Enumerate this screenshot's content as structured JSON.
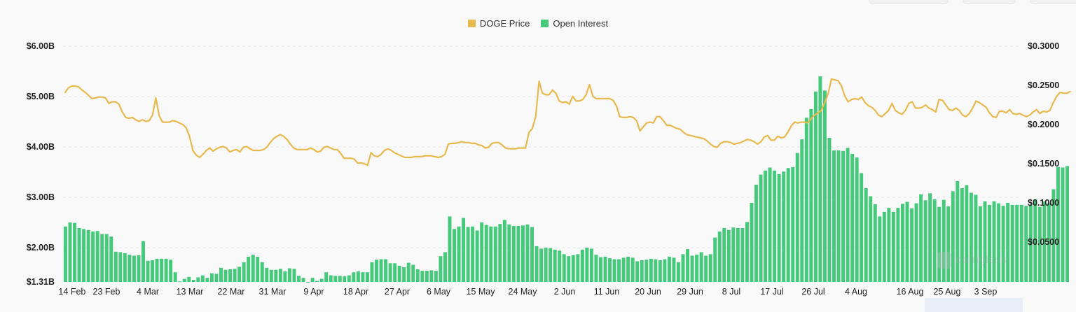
{
  "chart_data": {
    "type": "bar+line",
    "title": "",
    "legend_position": "top-center",
    "grid": true,
    "series": [
      {
        "name": "DOGE Price",
        "kind": "line",
        "axis": "right",
        "color": "#e8b94f",
        "values": [
          0.241,
          0.247,
          0.249,
          0.249,
          0.248,
          0.244,
          0.241,
          0.237,
          0.233,
          0.234,
          0.235,
          0.235,
          0.234,
          0.227,
          0.229,
          0.229,
          0.226,
          0.216,
          0.209,
          0.208,
          0.209,
          0.206,
          0.204,
          0.206,
          0.204,
          0.205,
          0.212,
          0.234,
          0.211,
          0.203,
          0.203,
          0.203,
          0.205,
          0.204,
          0.202,
          0.2,
          0.196,
          0.185,
          0.167,
          0.161,
          0.158,
          0.162,
          0.167,
          0.17,
          0.166,
          0.169,
          0.171,
          0.172,
          0.17,
          0.165,
          0.167,
          0.168,
          0.165,
          0.171,
          0.172,
          0.169,
          0.167,
          0.167,
          0.167,
          0.168,
          0.171,
          0.177,
          0.182,
          0.185,
          0.187,
          0.185,
          0.181,
          0.175,
          0.17,
          0.168,
          0.168,
          0.168,
          0.168,
          0.17,
          0.168,
          0.165,
          0.166,
          0.171,
          0.172,
          0.17,
          0.168,
          0.168,
          0.163,
          0.157,
          0.157,
          0.157,
          0.156,
          0.151,
          0.151,
          0.15,
          0.148,
          0.164,
          0.16,
          0.159,
          0.162,
          0.167,
          0.169,
          0.167,
          0.164,
          0.162,
          0.16,
          0.158,
          0.158,
          0.158,
          0.159,
          0.159,
          0.159,
          0.16,
          0.16,
          0.16,
          0.159,
          0.158,
          0.159,
          0.162,
          0.175,
          0.176,
          0.176,
          0.177,
          0.178,
          0.177,
          0.177,
          0.176,
          0.176,
          0.174,
          0.173,
          0.17,
          0.171,
          0.176,
          0.177,
          0.177,
          0.174,
          0.17,
          0.169,
          0.169,
          0.169,
          0.17,
          0.17,
          0.17,
          0.19,
          0.195,
          0.21,
          0.255,
          0.24,
          0.238,
          0.238,
          0.244,
          0.24,
          0.23,
          0.228,
          0.229,
          0.226,
          0.236,
          0.23,
          0.23,
          0.232,
          0.238,
          0.251,
          0.236,
          0.233,
          0.233,
          0.233,
          0.233,
          0.233,
          0.231,
          0.224,
          0.21,
          0.209,
          0.209,
          0.21,
          0.209,
          0.205,
          0.192,
          0.197,
          0.202,
          0.203,
          0.202,
          0.21,
          0.21,
          0.205,
          0.199,
          0.199,
          0.197,
          0.195,
          0.194,
          0.19,
          0.187,
          0.186,
          0.185,
          0.184,
          0.183,
          0.182,
          0.179,
          0.175,
          0.172,
          0.171,
          0.176,
          0.178,
          0.178,
          0.177,
          0.175,
          0.176,
          0.177,
          0.179,
          0.181,
          0.18,
          0.178,
          0.175,
          0.178,
          0.184,
          0.186,
          0.18,
          0.18,
          0.185,
          0.183,
          0.184,
          0.19,
          0.198,
          0.203,
          0.202,
          0.203,
          0.203,
          0.202,
          0.208,
          0.212,
          0.215,
          0.218,
          0.228,
          0.239,
          0.258,
          0.257,
          0.256,
          0.249,
          0.236,
          0.229,
          0.232,
          0.233,
          0.232,
          0.235,
          0.228,
          0.224,
          0.222,
          0.218,
          0.212,
          0.21,
          0.214,
          0.218,
          0.227,
          0.218,
          0.215,
          0.213,
          0.218,
          0.227,
          0.229,
          0.221,
          0.221,
          0.222,
          0.225,
          0.221,
          0.219,
          0.216,
          0.232,
          0.231,
          0.225,
          0.219,
          0.218,
          0.221,
          0.218,
          0.212,
          0.21,
          0.214,
          0.221,
          0.23,
          0.228,
          0.225,
          0.222,
          0.215,
          0.21,
          0.209,
          0.217,
          0.217,
          0.215,
          0.219,
          0.214,
          0.213,
          0.214,
          0.212,
          0.21,
          0.212,
          0.216,
          0.219,
          0.214,
          0.217,
          0.216,
          0.218,
          0.228,
          0.236,
          0.241,
          0.24,
          0.24,
          0.242
        ]
      },
      {
        "name": "Open Interest",
        "kind": "bar",
        "axis": "left",
        "color": "#45c97b",
        "values": [
          2.42,
          2.5,
          2.49,
          2.39,
          2.37,
          2.35,
          2.32,
          2.33,
          2.27,
          2.27,
          2.22,
          1.92,
          1.91,
          1.89,
          1.86,
          1.84,
          1.85,
          2.13,
          1.74,
          1.75,
          1.78,
          1.78,
          1.78,
          1.76,
          1.51,
          1.33,
          1.38,
          1.42,
          1.36,
          1.41,
          1.45,
          1.4,
          1.49,
          1.48,
          1.6,
          1.56,
          1.57,
          1.58,
          1.62,
          1.71,
          1.82,
          1.86,
          1.82,
          1.71,
          1.6,
          1.56,
          1.56,
          1.58,
          1.53,
          1.59,
          1.58,
          1.44,
          1.4,
          1.32,
          1.4,
          1.34,
          1.38,
          1.51,
          1.45,
          1.44,
          1.44,
          1.43,
          1.45,
          1.51,
          1.53,
          1.51,
          1.51,
          1.71,
          1.76,
          1.77,
          1.77,
          1.69,
          1.69,
          1.64,
          1.61,
          1.7,
          1.66,
          1.57,
          1.54,
          1.54,
          1.55,
          1.54,
          1.83,
          1.91,
          2.62,
          2.37,
          2.42,
          2.59,
          2.41,
          2.42,
          2.34,
          2.5,
          2.45,
          2.42,
          2.42,
          2.47,
          2.55,
          2.46,
          2.43,
          2.43,
          2.44,
          2.46,
          2.41,
          2.03,
          1.98,
          2.0,
          1.99,
          1.96,
          1.94,
          1.87,
          1.83,
          1.85,
          1.87,
          1.96,
          2.0,
          1.98,
          1.86,
          1.81,
          1.82,
          1.79,
          1.77,
          1.77,
          1.8,
          1.82,
          1.8,
          1.73,
          1.75,
          1.76,
          1.78,
          1.77,
          1.75,
          1.77,
          1.82,
          1.8,
          1.71,
          1.87,
          1.97,
          1.84,
          1.86,
          1.91,
          1.84,
          1.87,
          2.2,
          2.32,
          2.39,
          2.35,
          2.4,
          2.39,
          2.39,
          2.51,
          2.89,
          3.25,
          3.45,
          3.53,
          3.59,
          3.53,
          3.46,
          3.51,
          3.58,
          3.6,
          3.88,
          4.15,
          4.58,
          4.75,
          5.1,
          5.4,
          5.12,
          4.18,
          3.93,
          3.93,
          3.92,
          3.98,
          3.86,
          3.79,
          3.48,
          3.18,
          3.02,
          2.86,
          2.62,
          2.71,
          2.79,
          2.71,
          2.79,
          2.87,
          2.91,
          2.78,
          2.88,
          3.06,
          2.94,
          3.08,
          2.96,
          2.81,
          2.95,
          2.82,
          3.12,
          3.32,
          3.18,
          3.24,
          3.09,
          3.05,
          2.82,
          2.92,
          2.85,
          2.92,
          2.88,
          2.83,
          2.89,
          2.85,
          2.85,
          2.85,
          2.83,
          2.84,
          2.96,
          2.81,
          2.92,
          2.88,
          3.16,
          3.6,
          3.59,
          3.62
        ]
      }
    ],
    "x_tick_labels": [
      "14 Feb",
      "23 Feb",
      "4 Mar",
      "13 Mar",
      "22 Mar",
      "31 Mar",
      "9 Apr",
      "18 Apr",
      "27 Apr",
      "6 May",
      "15 May",
      "24 May",
      "2 Jun",
      "11 Jun",
      "20 Jun",
      "29 Jun",
      "8 Jul",
      "17 Jul",
      "26 Jul",
      "4 Aug",
      "16 Aug",
      "25 Aug",
      "3 Sep"
    ],
    "y_left": {
      "label": "Open Interest",
      "tick_labels": [
        "$6.00B",
        "$5.00B",
        "$4.00B",
        "$3.00B",
        "$2.00B",
        "$1.31B"
      ],
      "ylim": [
        1.31,
        6.0
      ]
    },
    "y_right": {
      "label": "DOGE Price",
      "tick_labels": [
        "$0.3000",
        "$0.2500",
        "$0.2000",
        "$0.1500",
        "$0.1000",
        "$0.0500"
      ],
      "ylim": [
        0.0,
        0.3
      ]
    }
  },
  "legend": {
    "items": [
      {
        "label": "DOGE Price",
        "color": "#e8b94f"
      },
      {
        "label": "Open Interest",
        "color": "#45c97b"
      }
    ]
  },
  "watermark": {
    "text": "coinglass"
  }
}
